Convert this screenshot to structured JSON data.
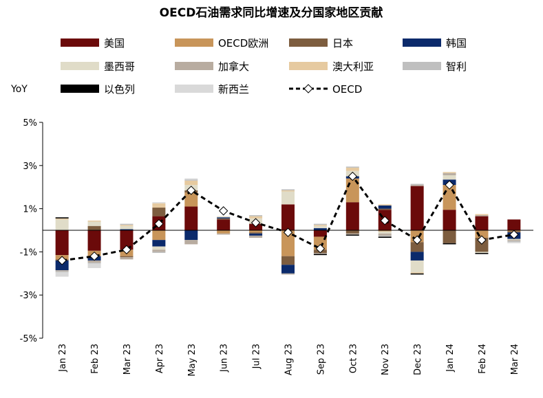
{
  "chart_data": {
    "type": "bar",
    "stacked": true,
    "title": "OECD石油需求同比增速及分国家地区贡献",
    "ylabel": "YoY",
    "ylim": [
      -5,
      5
    ],
    "yticks": [
      "5%",
      "3%",
      "1%",
      "-1%",
      "-3%",
      "-5%"
    ],
    "ytick_values": [
      5,
      3,
      1,
      -1,
      -3,
      -5
    ],
    "categories": [
      "Jan 23",
      "Feb 23",
      "Mar 23",
      "Apr 23",
      "May 23",
      "Jun 23",
      "Jul 23",
      "Aug 23",
      "Sep 23",
      "Oct 23",
      "Nov 23",
      "Dec 23",
      "Jan 24",
      "Feb 24",
      "Mar 24"
    ],
    "grid": false,
    "legend_position": "top",
    "series": [
      {
        "name": "美国",
        "color": "#6b0a0a",
        "values": [
          -1.15,
          -0.95,
          -0.9,
          0.65,
          1.1,
          0.5,
          0.3,
          1.2,
          -0.3,
          1.3,
          0.95,
          2.05,
          0.95,
          0.65,
          0.5
        ]
      },
      {
        "name": "OECD欧洲",
        "color": "#c8955a",
        "values": [
          -0.2,
          -0.25,
          -0.3,
          -0.45,
          0.65,
          -0.15,
          -0.1,
          -1.2,
          -0.6,
          1.1,
          -0.05,
          -0.55,
          1.15,
          -0.35,
          -0.05
        ]
      },
      {
        "name": "日本",
        "color": "#7d5d3f",
        "values": [
          -0.05,
          0.2,
          -0.05,
          0.4,
          0.1,
          0.05,
          -0.05,
          -0.4,
          -0.15,
          -0.15,
          0.05,
          -0.45,
          -0.6,
          -0.65,
          -0.05
        ]
      },
      {
        "name": "韩国",
        "color": "#0b2a6b",
        "values": [
          -0.45,
          -0.2,
          0.05,
          -0.3,
          -0.45,
          0.05,
          -0.1,
          -0.4,
          0.1,
          0.1,
          0.15,
          -0.4,
          0.25,
          0.0,
          -0.3
        ]
      },
      {
        "name": "墨西哥",
        "color": "#e0dcc8",
        "values": [
          0.5,
          0.2,
          0.15,
          -0.15,
          0.25,
          0.05,
          0.25,
          0.6,
          0.1,
          0.25,
          -0.1,
          -0.55,
          0.2,
          -0.05,
          -0.05
        ]
      },
      {
        "name": "加拿大",
        "color": "#b8aca0",
        "values": [
          -0.05,
          -0.1,
          -0.1,
          -0.1,
          -0.2,
          -0.05,
          -0.1,
          -0.05,
          -0.05,
          -0.05,
          -0.1,
          0.05,
          0.1,
          0.05,
          -0.05
        ]
      },
      {
        "name": "澳大利亚",
        "color": "#e6caa0",
        "values": [
          0.05,
          0.05,
          0.05,
          0.2,
          0.2,
          0.0,
          0.1,
          0.05,
          0.05,
          0.15,
          0.05,
          -0.05,
          0.05,
          0.05,
          0.0
        ]
      },
      {
        "name": "智利",
        "color": "#bfbfbf",
        "values": [
          -0.05,
          -0.05,
          0.05,
          -0.05,
          0.05,
          0.0,
          0.05,
          0.05,
          0.05,
          0.05,
          -0.05,
          0.05,
          0.0,
          0.0,
          -0.05
        ]
      },
      {
        "name": "以色列",
        "color": "#000000",
        "values": [
          0.05,
          0.0,
          0.0,
          0.0,
          0.0,
          0.0,
          0.0,
          0.0,
          -0.05,
          -0.05,
          -0.05,
          -0.05,
          -0.05,
          -0.05,
          0.0
        ]
      },
      {
        "name": "新西兰",
        "color": "#d9d9d9",
        "values": [
          -0.2,
          -0.2,
          0.0,
          0.05,
          0.05,
          0.0,
          0.0,
          0.0,
          0.0,
          0.0,
          0.0,
          0.0,
          0.0,
          0.0,
          -0.05
        ]
      }
    ],
    "line": {
      "name": "OECD",
      "color": "#000000",
      "marker": "diamond",
      "values": [
        -1.4,
        -1.2,
        -0.9,
        0.3,
        1.85,
        0.9,
        0.35,
        -0.1,
        -0.85,
        2.5,
        0.45,
        -0.45,
        2.1,
        -0.45,
        -0.2
      ]
    }
  }
}
